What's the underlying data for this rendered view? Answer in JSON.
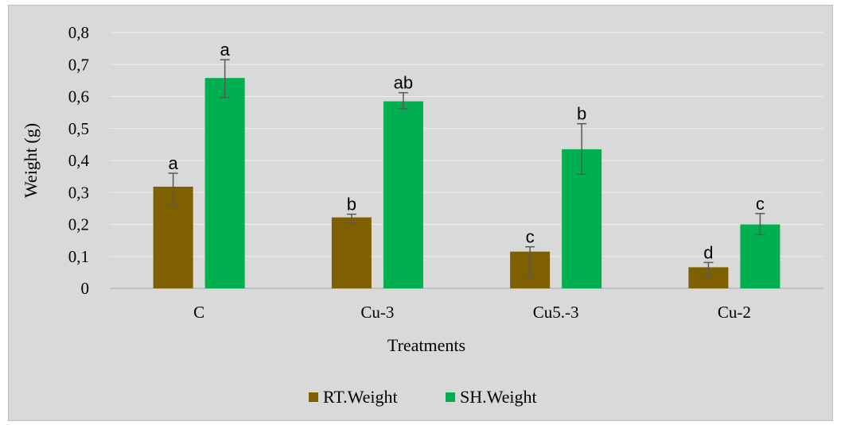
{
  "chart_data": {
    "type": "bar",
    "title": "",
    "xlabel": "Treatments",
    "ylabel": "Weight (g)",
    "ylim": [
      0,
      0.8
    ],
    "ytick_labels": [
      "0",
      "0,1",
      "0,2",
      "0,3",
      "0,4",
      "0,5",
      "0,6",
      "0,7",
      "0,8"
    ],
    "categories": [
      "C",
      "Cu-3",
      "Cu5.-3",
      "Cu-2"
    ],
    "grid": true,
    "legend": "bottom",
    "series": [
      {
        "name": "RT.Weight",
        "color": "#7f6000",
        "values": [
          0.318,
          0.222,
          0.115,
          0.066
        ],
        "error_low": [
          0.258,
          0.203,
          0.035,
          0.034
        ],
        "error_high": [
          0.36,
          0.232,
          0.13,
          0.081
        ],
        "letters": [
          "a",
          "b",
          "c",
          "d"
        ]
      },
      {
        "name": "SH.Weight",
        "color": "#00b050",
        "values": [
          0.658,
          0.585,
          0.435,
          0.2
        ],
        "error_low": [
          0.597,
          0.562,
          0.357,
          0.168
        ],
        "error_high": [
          0.715,
          0.612,
          0.515,
          0.234
        ],
        "letters": [
          "a",
          "ab",
          "b",
          "c"
        ]
      }
    ]
  }
}
